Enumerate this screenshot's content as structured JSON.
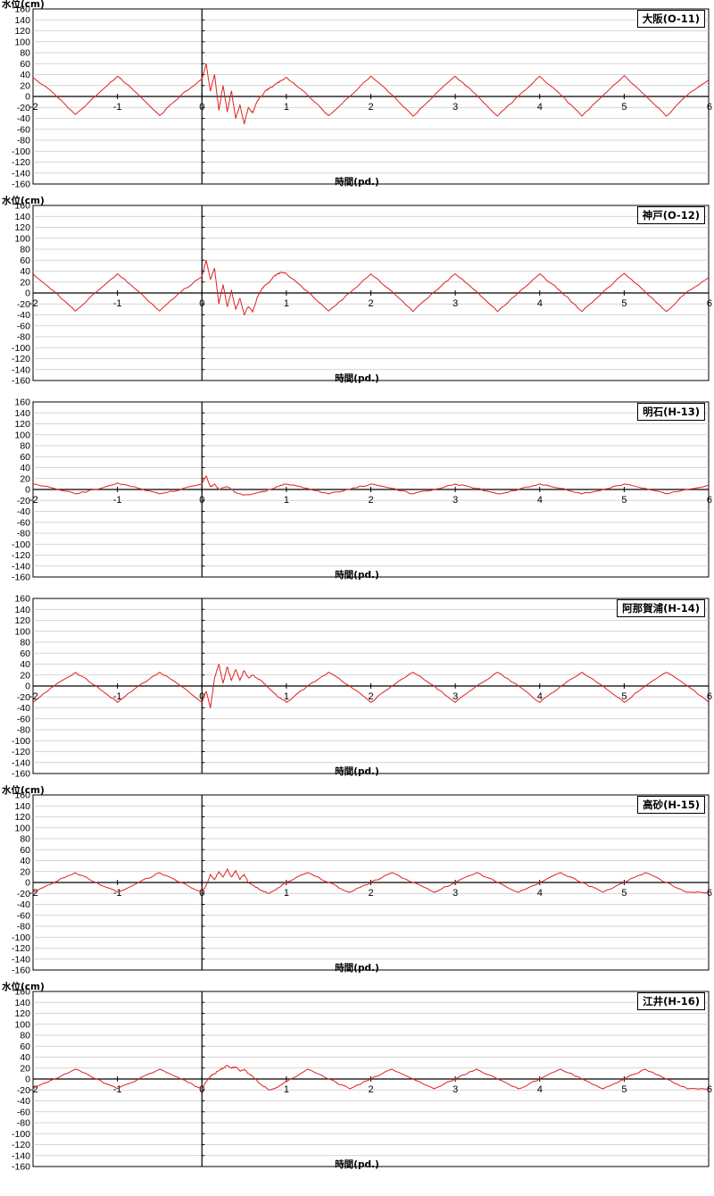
{
  "colors": {
    "line": "#e02020",
    "grid": "#c8c8c8",
    "axis": "#000000"
  },
  "chart_data": [
    {
      "type": "line",
      "title": "大阪(O-11)",
      "xlabel": "時間(pd.)",
      "ylabel": "水位(cm)",
      "xlim": [
        -2,
        6
      ],
      "ylim": [
        -160,
        160
      ],
      "grid": true,
      "xticks": [
        "-2",
        "-1",
        "0",
        "1",
        "2",
        "3",
        "4",
        "5",
        "6"
      ],
      "yticks": [
        "160",
        "140",
        "120",
        "100",
        "80",
        "60",
        "40",
        "20",
        "0",
        "-20",
        "-40",
        "-60",
        "-80",
        "-100",
        "-120",
        "-140",
        "-160"
      ],
      "series": [
        {
          "x": [
            -2,
            -1.75,
            -1.5,
            -1.25,
            -1,
            -0.75,
            -0.5,
            -0.25,
            0,
            0.05,
            0.1,
            0.15,
            0.2,
            0.25,
            0.3,
            0.35,
            0.4,
            0.45,
            0.5,
            0.55,
            0.6,
            0.65,
            0.7,
            0.75,
            0.8,
            0.85,
            0.9,
            0.95,
            1,
            1.25,
            1.5,
            1.75,
            2,
            2.25,
            2.5,
            2.75,
            3,
            3.25,
            3.5,
            3.75,
            4,
            4.25,
            4.5,
            4.75,
            5,
            5.25,
            5.5,
            5.75,
            6
          ],
          "y": [
            35,
            5,
            -33,
            2,
            37,
            3,
            -35,
            2,
            32,
            60,
            10,
            40,
            -25,
            20,
            -28,
            10,
            -40,
            -15,
            -50,
            -20,
            -30,
            -10,
            0,
            10,
            15,
            20,
            25,
            30,
            35,
            3,
            -35,
            0,
            37,
            3,
            -36,
            2,
            37,
            3,
            -36,
            1,
            37,
            3,
            -36,
            2,
            38,
            2,
            -36,
            3,
            30
          ]
        }
      ]
    },
    {
      "type": "line",
      "title": "神戸(O-12)",
      "xlabel": "時間(pd.)",
      "ylabel": "水位(cm)",
      "xlim": [
        -2,
        6
      ],
      "ylim": [
        -160,
        160
      ],
      "grid": true,
      "xticks": [
        "-2",
        "-1",
        "0",
        "1",
        "2",
        "3",
        "4",
        "5",
        "6"
      ],
      "yticks": [
        "160",
        "140",
        "120",
        "100",
        "80",
        "60",
        "40",
        "20",
        "0",
        "-20",
        "-40",
        "-60",
        "-80",
        "-100",
        "-120",
        "-140",
        "-160"
      ],
      "series": [
        {
          "x": [
            -2,
            -1.75,
            -1.5,
            -1.25,
            -1,
            -0.75,
            -0.5,
            -0.25,
            0,
            0.05,
            0.1,
            0.15,
            0.2,
            0.25,
            0.3,
            0.35,
            0.4,
            0.45,
            0.5,
            0.55,
            0.6,
            0.65,
            0.7,
            0.75,
            0.8,
            0.85,
            0.9,
            0.95,
            1,
            1.25,
            1.5,
            1.75,
            2,
            2.25,
            2.5,
            2.75,
            3,
            3.25,
            3.5,
            3.75,
            4,
            4.25,
            4.5,
            4.75,
            5,
            5.25,
            5.5,
            5.75,
            6
          ],
          "y": [
            35,
            3,
            -33,
            2,
            35,
            3,
            -33,
            2,
            30,
            60,
            25,
            45,
            -20,
            15,
            -25,
            5,
            -30,
            -10,
            -40,
            -25,
            -35,
            -10,
            5,
            15,
            20,
            30,
            35,
            38,
            35,
            3,
            -33,
            0,
            35,
            3,
            -34,
            2,
            35,
            3,
            -34,
            1,
            35,
            3,
            -34,
            2,
            36,
            2,
            -34,
            3,
            28
          ]
        }
      ]
    },
    {
      "type": "line",
      "title": "明石(H-13)",
      "xlabel": "時間(pd.)",
      "ylabel": "",
      "xlim": [
        -2,
        6
      ],
      "ylim": [
        -160,
        160
      ],
      "grid": true,
      "xticks": [
        "-2",
        "-1",
        "0",
        "1",
        "2",
        "3",
        "4",
        "5",
        "6"
      ],
      "yticks": [
        "160",
        "140",
        "120",
        "100",
        "80",
        "60",
        "40",
        "20",
        "0",
        "-20",
        "-40",
        "-60",
        "-80",
        "-100",
        "-120",
        "-140",
        "-160"
      ],
      "series": [
        {
          "x": [
            -2,
            -1.75,
            -1.5,
            -1.25,
            -1,
            -0.75,
            -0.5,
            -0.25,
            0,
            0.05,
            0.1,
            0.15,
            0.2,
            0.3,
            0.4,
            0.5,
            0.6,
            0.7,
            0.8,
            0.9,
            1,
            1.25,
            1.5,
            1.75,
            2,
            2.25,
            2.5,
            2.75,
            3,
            3.25,
            3.5,
            3.75,
            4,
            4.25,
            4.5,
            4.75,
            5,
            5.25,
            5.5,
            5.75,
            6
          ],
          "y": [
            10,
            2,
            -8,
            0,
            12,
            2,
            -8,
            0,
            10,
            25,
            5,
            10,
            0,
            5,
            -5,
            -10,
            -8,
            -5,
            0,
            5,
            10,
            2,
            -8,
            0,
            10,
            2,
            -8,
            0,
            10,
            2,
            -8,
            0,
            10,
            2,
            -8,
            0,
            10,
            2,
            -8,
            0,
            8
          ]
        }
      ]
    },
    {
      "type": "line",
      "title": "阿那賀浦(H-14)",
      "xlabel": "時間(pd.)",
      "ylabel": "",
      "xlim": [
        -2,
        6
      ],
      "ylim": [
        -160,
        160
      ],
      "grid": true,
      "xticks": [
        "-2",
        "-1",
        "0",
        "1",
        "2",
        "3",
        "4",
        "5",
        "6"
      ],
      "yticks": [
        "160",
        "140",
        "120",
        "100",
        "80",
        "60",
        "40",
        "20",
        "0",
        "-20",
        "-40",
        "-60",
        "-80",
        "-100",
        "-120",
        "-140",
        "-160"
      ],
      "series": [
        {
          "x": [
            -2,
            -1.75,
            -1.5,
            -1.25,
            -1,
            -0.75,
            -0.5,
            -0.25,
            0,
            0.05,
            0.1,
            0.15,
            0.2,
            0.25,
            0.3,
            0.35,
            0.4,
            0.45,
            0.5,
            0.55,
            0.6,
            0.7,
            0.8,
            0.9,
            1,
            1.25,
            1.5,
            1.75,
            2,
            2.25,
            2.5,
            2.75,
            3,
            3.25,
            3.5,
            3.75,
            4,
            4.25,
            4.5,
            4.75,
            5,
            5.25,
            5.5,
            5.75,
            6
          ],
          "y": [
            -30,
            0,
            25,
            0,
            -30,
            0,
            25,
            0,
            -30,
            -10,
            -40,
            15,
            40,
            5,
            35,
            10,
            30,
            10,
            28,
            15,
            20,
            10,
            -5,
            -20,
            -30,
            0,
            25,
            0,
            -30,
            0,
            25,
            0,
            -30,
            0,
            25,
            0,
            -30,
            0,
            25,
            0,
            -30,
            0,
            25,
            0,
            -30
          ]
        }
      ]
    },
    {
      "type": "line",
      "title": "高砂(H-15)",
      "xlabel": "時間(pd.)",
      "ylabel": "水位(cm)",
      "xlim": [
        -2,
        6
      ],
      "ylim": [
        -160,
        160
      ],
      "grid": true,
      "xticks": [
        "-2",
        "-1",
        "0",
        "1",
        "2",
        "3",
        "4",
        "5",
        "6"
      ],
      "yticks": [
        "160",
        "140",
        "120",
        "100",
        "80",
        "60",
        "40",
        "20",
        "0",
        "-20",
        "-40",
        "-60",
        "-80",
        "-100",
        "-120",
        "-140",
        "-160"
      ],
      "series": [
        {
          "x": [
            -2,
            -1.75,
            -1.5,
            -1.25,
            -1,
            -0.75,
            -0.5,
            -0.25,
            0,
            0.05,
            0.1,
            0.15,
            0.2,
            0.25,
            0.3,
            0.35,
            0.4,
            0.45,
            0.5,
            0.55,
            0.6,
            0.7,
            0.8,
            0.9,
            1,
            1.25,
            1.5,
            1.75,
            2,
            2.25,
            2.5,
            2.75,
            3,
            3.25,
            3.5,
            3.75,
            4,
            4.25,
            4.5,
            4.75,
            5,
            5.25,
            5.5,
            5.75,
            6
          ],
          "y": [
            -18,
            0,
            18,
            0,
            -18,
            0,
            18,
            0,
            -18,
            -5,
            15,
            5,
            20,
            10,
            25,
            10,
            22,
            5,
            15,
            0,
            -5,
            -15,
            -20,
            -10,
            0,
            18,
            0,
            -18,
            0,
            18,
            0,
            -18,
            0,
            18,
            0,
            -18,
            0,
            18,
            0,
            -18,
            0,
            18,
            0,
            -18,
            -18
          ]
        }
      ]
    },
    {
      "type": "line",
      "title": "江井(H-16)",
      "xlabel": "時間(pd.)",
      "ylabel": "水位(cm)",
      "xlim": [
        -2,
        6
      ],
      "ylim": [
        -160,
        160
      ],
      "grid": true,
      "xticks": [
        "-2",
        "-1",
        "0",
        "1",
        "2",
        "3",
        "4",
        "5",
        "6"
      ],
      "yticks": [
        "160",
        "140",
        "120",
        "100",
        "80",
        "60",
        "40",
        "20",
        "0",
        "-20",
        "-40",
        "-60",
        "-80",
        "-100",
        "-120",
        "-140",
        "-160"
      ],
      "series": [
        {
          "x": [
            -2,
            -1.75,
            -1.5,
            -1.25,
            -1,
            -0.75,
            -0.5,
            -0.25,
            0,
            0.05,
            0.1,
            0.15,
            0.2,
            0.25,
            0.3,
            0.35,
            0.4,
            0.45,
            0.5,
            0.55,
            0.6,
            0.7,
            0.8,
            0.9,
            1,
            1.25,
            1.5,
            1.75,
            2,
            2.25,
            2.5,
            2.75,
            3,
            3.25,
            3.5,
            3.75,
            4,
            4.25,
            4.5,
            4.75,
            5,
            5.25,
            5.5,
            5.75,
            6
          ],
          "y": [
            -18,
            0,
            18,
            0,
            -18,
            0,
            18,
            0,
            -18,
            -5,
            5,
            10,
            15,
            20,
            25,
            20,
            22,
            15,
            18,
            10,
            5,
            -10,
            -20,
            -15,
            -5,
            18,
            0,
            -18,
            0,
            18,
            0,
            -18,
            0,
            18,
            0,
            -18,
            0,
            18,
            0,
            -18,
            0,
            18,
            0,
            -18,
            -18
          ]
        }
      ]
    }
  ]
}
